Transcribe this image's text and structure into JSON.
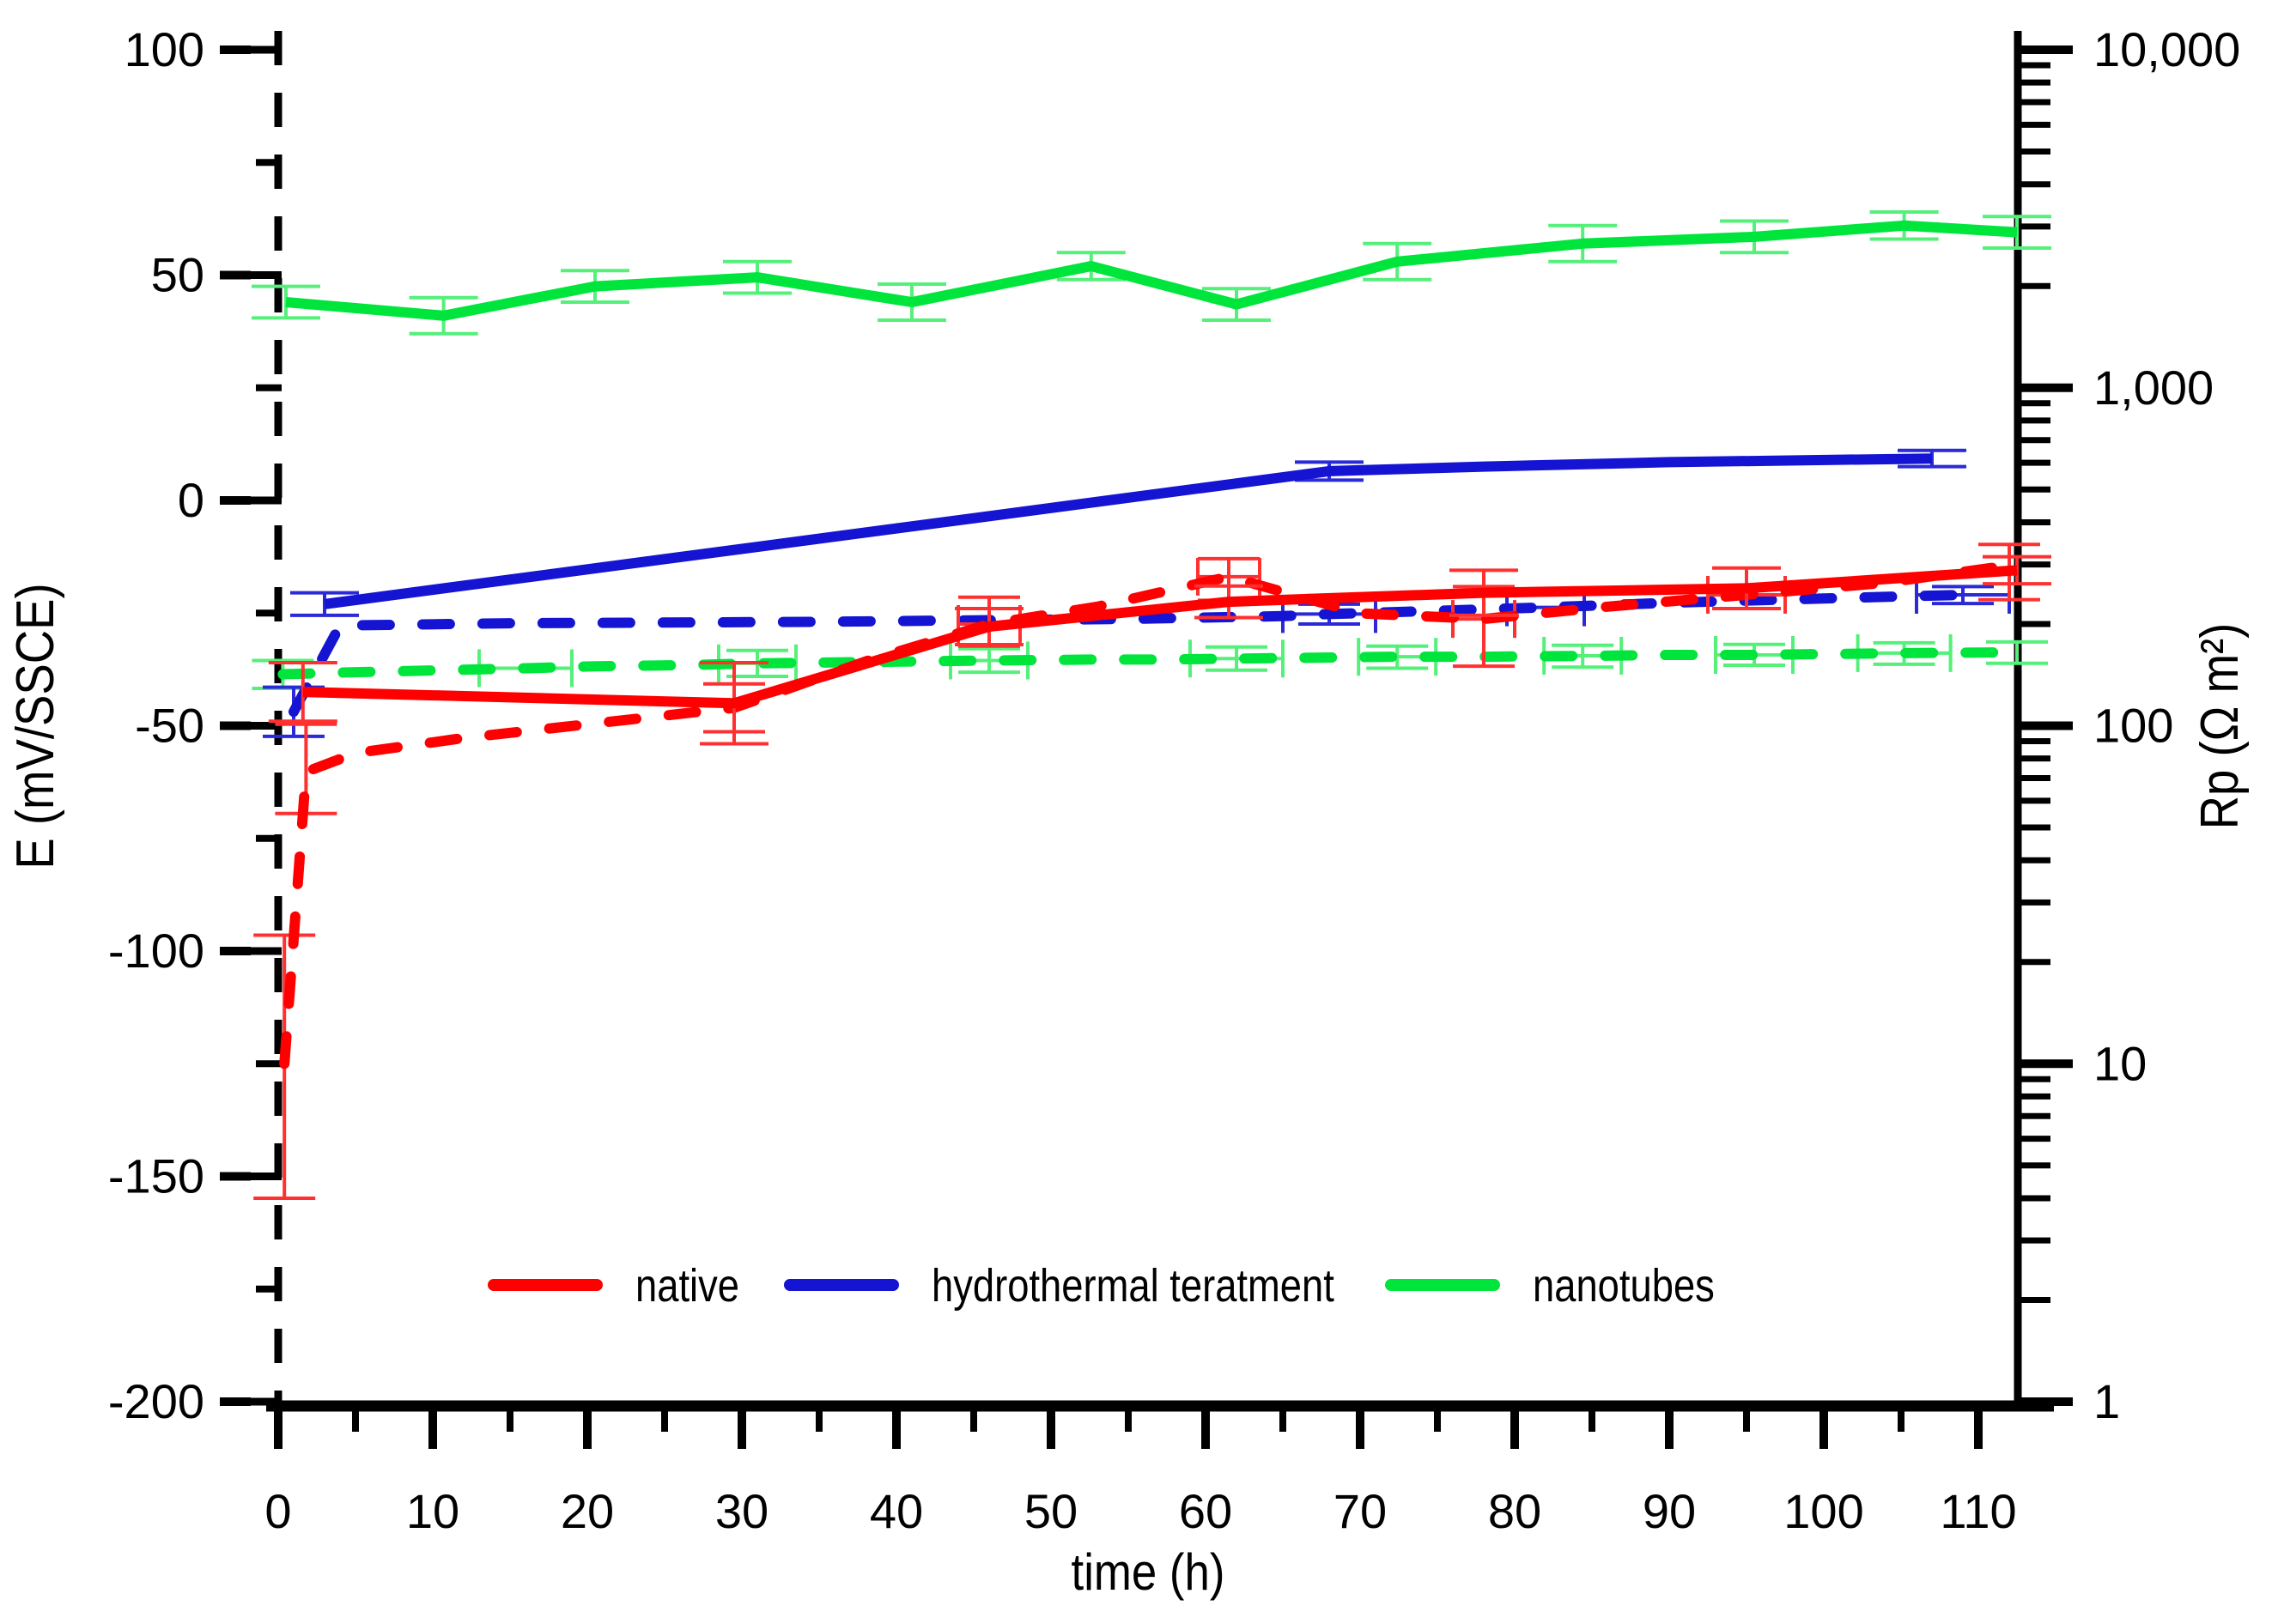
{
  "chart_data": {
    "type": "line",
    "title": "",
    "xlabel": "time (h)",
    "ylabel_left": "E (mV/SSCE)",
    "ylabel_right": "Rp (Ω m²)",
    "x_axis": {
      "min": 0,
      "max": 110,
      "minor_step": 5,
      "major_ticks": [
        {
          "v": 0,
          "label": "0"
        },
        {
          "v": 10,
          "label": "10"
        },
        {
          "v": 20,
          "label": "20"
        },
        {
          "v": 30,
          "label": "30"
        },
        {
          "v": 40,
          "label": "40"
        },
        {
          "v": 50,
          "label": "50"
        },
        {
          "v": 60,
          "label": "60"
        },
        {
          "v": 70,
          "label": "70"
        },
        {
          "v": 80,
          "label": "80"
        },
        {
          "v": 90,
          "label": "90"
        },
        {
          "v": 100,
          "label": "100"
        },
        {
          "v": 110,
          "label": "110"
        }
      ]
    },
    "y_left_axis": {
      "min": -200,
      "max": 100,
      "minor_step": 25,
      "major_ticks": [
        {
          "v": 100,
          "label": "100"
        },
        {
          "v": 50,
          "label": "50"
        },
        {
          "v": 0,
          "label": "0"
        },
        {
          "v": -50,
          "label": "-50"
        },
        {
          "v": -100,
          "label": "-100"
        },
        {
          "v": -150,
          "label": "-150"
        },
        {
          "v": -200,
          "label": "-200"
        }
      ]
    },
    "y_right_axis": {
      "scale": "log",
      "min": 1,
      "max": 10000,
      "major_ticks": [
        {
          "v": 10000,
          "label": "10,000"
        },
        {
          "v": 1000,
          "label": "1,000"
        },
        {
          "v": 100,
          "label": "100"
        },
        {
          "v": 10,
          "label": "10"
        },
        {
          "v": 1,
          "label": "1"
        }
      ]
    },
    "legend": [
      {
        "label": "native",
        "color": "#FF0000"
      },
      {
        "label": "hydrothermal teratment",
        "color": "#1414D2"
      },
      {
        "label": "nanotubes",
        "color": "#00E53C"
      }
    ],
    "series": [
      {
        "id": "native-Rp",
        "name": "native Rp (dashed, right axis)",
        "axis": "right",
        "style": "dashed",
        "color": "#FF0000",
        "err_color": "#FF3030",
        "points": [
          {
            "x": 0.4,
            "y": 10,
            "lo": 4,
            "hi": 24
          },
          {
            "x": 1.8,
            "y": 73,
            "lo": 55,
            "hi": 101
          },
          {
            "x": 5,
            "y": 83
          },
          {
            "x": 12,
            "y": 92
          },
          {
            "x": 20,
            "y": 101
          },
          {
            "x": 29.5,
            "y": 113,
            "lo": 96,
            "hi": 133
          },
          {
            "x": 38,
            "y": 155
          },
          {
            "x": 46,
            "y": 200,
            "lo": 172,
            "hi": 240,
            "xerr": 2
          },
          {
            "x": 53,
            "y": 225
          },
          {
            "x": 61.5,
            "y": 276,
            "lo": 235,
            "hi": 312,
            "xerr": 2
          },
          {
            "x": 70,
            "y": 215
          },
          {
            "x": 78,
            "y": 207,
            "lo": 150,
            "hi": 258,
            "xerr": 2
          },
          {
            "x": 86,
            "y": 225
          },
          {
            "x": 95,
            "y": 244,
            "xerr": 2.5
          },
          {
            "x": 104,
            "y": 265
          },
          {
            "x": 112,
            "y": 298,
            "lo": 236,
            "hi": 344
          }
        ]
      },
      {
        "id": "hydrothermal-Rp",
        "name": "hydrothermal treatment Rp (dashed, right axis)",
        "axis": "right",
        "style": "dashed",
        "color": "#1414D2",
        "err_color": "#2A2AD8",
        "points": [
          {
            "x": 1,
            "y": 110,
            "lo": 93,
            "hi": 130
          },
          {
            "x": 4,
            "y": 198
          },
          {
            "x": 15,
            "y": 201
          },
          {
            "x": 25,
            "y": 202
          },
          {
            "x": 35,
            "y": 203
          },
          {
            "x": 45,
            "y": 205
          },
          {
            "x": 55,
            "y": 207
          },
          {
            "x": 65,
            "y": 211
          },
          {
            "x": 68,
            "y": 214,
            "lo": 200,
            "hi": 229,
            "xerr": 3
          },
          {
            "x": 78,
            "y": 221
          },
          {
            "x": 82,
            "y": 224,
            "xerr": 2.5
          },
          {
            "x": 90,
            "y": 231
          },
          {
            "x": 100,
            "y": 238
          },
          {
            "x": 109,
            "y": 244,
            "lo": 230,
            "hi": 258,
            "xerr": 3
          }
        ]
      },
      {
        "id": "nanotubes-Rp",
        "name": "nanotubes Rp (dashed, right axis)",
        "axis": "right",
        "style": "dashed",
        "color": "#00E53C",
        "err_color": "#55F07A",
        "points": [
          {
            "x": 0.3,
            "y": 142,
            "lo": 129,
            "hi": 156
          },
          {
            "x": 5,
            "y": 144
          },
          {
            "x": 10.7,
            "y": 146
          },
          {
            "x": 16,
            "y": 148,
            "xerr": 3
          },
          {
            "x": 20.5,
            "y": 150
          },
          {
            "x": 26,
            "y": 151
          },
          {
            "x": 31,
            "y": 153,
            "lo": 140,
            "hi": 167,
            "xerr": 2.5
          },
          {
            "x": 36,
            "y": 154
          },
          {
            "x": 41,
            "y": 155
          },
          {
            "x": 46,
            "y": 156,
            "lo": 144,
            "hi": 169,
            "xerr": 2.5
          },
          {
            "x": 52.6,
            "y": 157
          },
          {
            "x": 57,
            "y": 157
          },
          {
            "x": 62,
            "y": 158,
            "lo": 146,
            "hi": 171,
            "xerr": 3
          },
          {
            "x": 67,
            "y": 159
          },
          {
            "x": 72.4,
            "y": 160,
            "lo": 148,
            "hi": 172,
            "xerr": 2.5
          },
          {
            "x": 78,
            "y": 160
          },
          {
            "x": 84.4,
            "y": 161,
            "lo": 149,
            "hi": 173,
            "xerr": 2.5
          },
          {
            "x": 90,
            "y": 162
          },
          {
            "x": 95.5,
            "y": 162,
            "lo": 151,
            "hi": 174,
            "xerr": 2.5
          },
          {
            "x": 100,
            "y": 163
          },
          {
            "x": 105.2,
            "y": 164,
            "lo": 152,
            "hi": 176,
            "xerr": 3
          },
          {
            "x": 112.5,
            "y": 165,
            "lo": 153,
            "hi": 177
          }
        ]
      },
      {
        "id": "native-E",
        "name": "native E (solid, left axis)",
        "axis": "left",
        "style": "solid",
        "color": "#FF0000",
        "err_color": "#FF3030",
        "points": [
          {
            "x": 1.6,
            "y": -42.5,
            "yerr": 6.5
          },
          {
            "x": 29.5,
            "y": -45,
            "yerr": 9
          },
          {
            "x": 46,
            "y": -28,
            "yerr": 4
          },
          {
            "x": 61.5,
            "y": -22.5,
            "yerr": 3.5
          },
          {
            "x": 78,
            "y": -20.5,
            "yerr": 5
          },
          {
            "x": 95,
            "y": -19.5,
            "yerr": 4.5
          },
          {
            "x": 112.5,
            "y": -15.5,
            "yerr": 3
          }
        ]
      },
      {
        "id": "hydrothermal-E",
        "name": "hydrothermal treatment E (solid, left axis)",
        "axis": "left",
        "style": "solid",
        "color": "#1414D2",
        "err_color": "#2A2AD8",
        "points": [
          {
            "x": 3,
            "y": -23,
            "yerr": 2.5
          },
          {
            "x": 68,
            "y": 6.5,
            "yerr": 2
          },
          {
            "x": 78,
            "y": 7.5
          },
          {
            "x": 90,
            "y": 8.5
          },
          {
            "x": 107,
            "y": 9.3,
            "yerr": 1.8
          }
        ]
      },
      {
        "id": "nanotubes-E",
        "name": "nanotubes E (solid, left axis)",
        "axis": "left",
        "style": "solid",
        "color": "#00E53C",
        "err_color": "#55F07A",
        "points": [
          {
            "x": 0.5,
            "y": 44,
            "yerr": 3.5
          },
          {
            "x": 10.7,
            "y": 41,
            "yerr": 4
          },
          {
            "x": 20.5,
            "y": 47.5,
            "yerr": 3.5
          },
          {
            "x": 31,
            "y": 49.5,
            "yerr": 3.5
          },
          {
            "x": 41,
            "y": 44,
            "yerr": 4
          },
          {
            "x": 52.6,
            "y": 52,
            "yerr": 3
          },
          {
            "x": 62,
            "y": 43.5,
            "yerr": 3.5
          },
          {
            "x": 72.4,
            "y": 53,
            "yerr": 4
          },
          {
            "x": 84.4,
            "y": 57,
            "yerr": 4
          },
          {
            "x": 95.5,
            "y": 58.5,
            "yerr": 3.5
          },
          {
            "x": 105.2,
            "y": 61,
            "yerr": 3
          },
          {
            "x": 112.5,
            "y": 59.5,
            "yerr": 3.5
          }
        ]
      }
    ],
    "layout_hints": {
      "grid": "off",
      "legend_position": "bottom-inside",
      "left_axis_style": "dashed",
      "x_range_px_note": "x axis 0-110 h, left E axis -200..100 mV linear, right Rp axis 1..10000 log"
    }
  }
}
